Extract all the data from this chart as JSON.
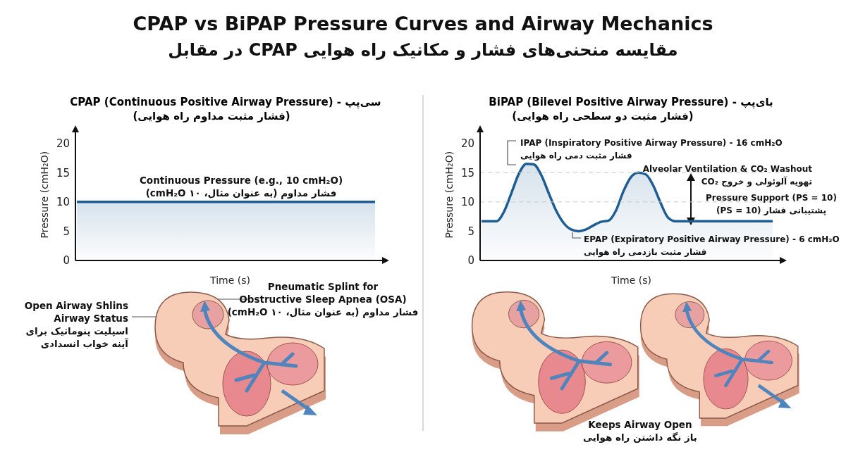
{
  "chart_data": [
    {
      "type": "other",
      "title": "CPAP vs BiPAP Pressure Curves and Airway Mechanics",
      "subtitle": "مقایسه منحنی‌های فشار و مکانیک راه هوایی CPAP در مقابل"
    },
    {
      "type": "area",
      "title": "CPAP (Continuous Positive Airway Pressure) - سی‌پپ",
      "subtitle": "(فشار مثبت مداوم راه هوایی)",
      "xlabel": "Time (s)",
      "ylabel": "Pressure (cmH₂O)",
      "categories": [
        null,
        null,
        null,
        null,
        null,
        null,
        null,
        null,
        null,
        null
      ],
      "values": [
        10,
        10,
        10,
        10,
        10,
        10,
        10,
        10,
        10,
        10
      ],
      "color": "#1d5d94",
      "ylim": [
        0,
        22
      ],
      "yticks": [
        0,
        5,
        10,
        15,
        20
      ],
      "tick_labels": "y",
      "annotations": [
        "Continuous Pressure (e.g., 10 cmH₂O)\nفشار مداوم (به عنوان مثال، ۱۰ cmH₂O)",
        "Pneumatic Splint for\nObstructive Sleep Apnea (OSA)\nفشار مداوم (به عنوان مثال، ۱۰ cmH₂O)",
        "Open Airway Shlins\nAirway Status\nاسپلیت پنوماتیک برای\nآپنه خواب انسدادی"
      ]
    },
    {
      "type": "area",
      "title": "BiPAP (Bilevel Positive Airway Pressure) - بای‌پپ",
      "subtitle": "(فشار مثبت دو سطحی راه هوایی)",
      "xlabel": "Time (s)",
      "ylabel": "Pressure (cmH₂O)",
      "categories": [
        null,
        null,
        null,
        null,
        null,
        null,
        null,
        null,
        null,
        null,
        null,
        null,
        null,
        null,
        null,
        null,
        null,
        null,
        null,
        null,
        null,
        null,
        null,
        null,
        null,
        null,
        null,
        null,
        null,
        null,
        null,
        null,
        null,
        null,
        null,
        null,
        null,
        null,
        null,
        null
      ],
      "values": [
        6.7,
        6.7,
        6.7,
        8.3,
        11.5,
        14.8,
        16.5,
        16.4,
        14.6,
        11.5,
        8.5,
        6.4,
        5.3,
        5.0,
        5.3,
        6.0,
        6.6,
        6.8,
        8.5,
        11.8,
        14.2,
        15.0,
        14.7,
        12.8,
        9.8,
        7.3,
        6.7,
        6.7,
        6.7,
        6.7,
        6.7,
        6.7,
        6.7,
        6.7,
        6.7,
        6.7,
        6.7,
        6.7,
        6.7,
        6.7
      ],
      "color": "#1d5d94",
      "ylim": [
        0,
        22
      ],
      "yticks": [
        0,
        5,
        10,
        15,
        20
      ],
      "tick_labels": "y",
      "ref_lines": [
        {
          "axis": "y",
          "value": 15,
          "color": "#c8c8c8",
          "line_style": "dashed"
        },
        {
          "axis": "y",
          "value": 10,
          "color": "#c8c8c8",
          "line_style": "dashed"
        }
      ],
      "annotations": [
        "IPAP (Inspiratory Positive Airway Pressure) - 16 cmH₂O\nفشار مثبت دمی راه هوایی",
        "Alveolar Ventilation & CO₂ Washout\nتهویه آلوئولی و خروج CO₂",
        "Pressure Support (PS = 10)\nپشتیبانی فشار (PS = 10)",
        "EPAP (Expiratory Positive Airway Pressure) - 6 cmH₂O\nفشار مثبت بازدمی راه هوایی",
        "Keeps Airway Open\nباز نگه داشتن راه هوایی"
      ]
    }
  ]
}
